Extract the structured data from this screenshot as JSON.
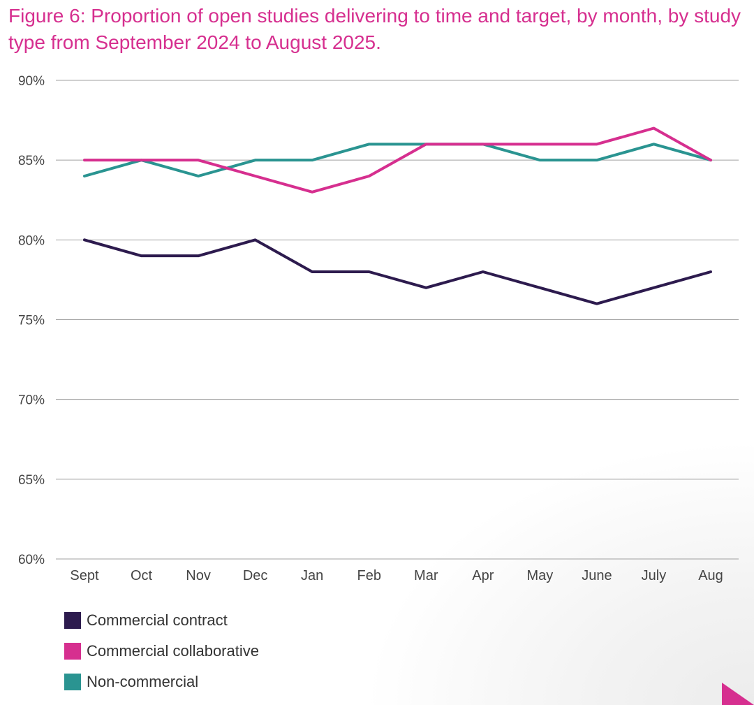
{
  "colors": {
    "title": "#d62f8f",
    "grid": "#a0a0a0",
    "axis_text": "#444444",
    "accent": "#d62f8f"
  },
  "chart_data": {
    "type": "line",
    "title": "Figure 6: Proportion of open studies delivering to time and target, by month, by study type from September 2024 to August 2025.",
    "categories": [
      "Sept",
      "Oct",
      "Nov",
      "Dec",
      "Jan",
      "Feb",
      "Mar",
      "Apr",
      "May",
      "June",
      "July",
      "Aug"
    ],
    "ylim": [
      60,
      90
    ],
    "yticks": [
      {
        "value": 90,
        "label": "90%"
      },
      {
        "value": 85,
        "label": "85%"
      },
      {
        "value": 80,
        "label": "80%"
      },
      {
        "value": 75,
        "label": "75%"
      },
      {
        "value": 70,
        "label": "70%"
      },
      {
        "value": 65,
        "label": "65%"
      },
      {
        "value": 60,
        "label": "60%"
      }
    ],
    "xlabel": "",
    "ylabel": "",
    "grid": true,
    "legend_position": "bottom-left",
    "series": [
      {
        "name": "Commercial contract",
        "key": "commercial-contract",
        "color": "#2d1b4e",
        "values": [
          80,
          79,
          79,
          80,
          78,
          78,
          77,
          78,
          77,
          76,
          77,
          78
        ]
      },
      {
        "name": "Non-commercial",
        "key": "non-commercial",
        "color": "#2a9491",
        "values": [
          84,
          85,
          84,
          85,
          85,
          86,
          86,
          86,
          85,
          85,
          86,
          85
        ]
      },
      {
        "name": "Commercial collaborative",
        "key": "commercial-collaborative",
        "color": "#d62f8f",
        "values": [
          85,
          85,
          85,
          84,
          83,
          84,
          86,
          86,
          86,
          86,
          87,
          85
        ]
      }
    ],
    "legend": [
      {
        "name": "Commercial contract",
        "color": "#2d1b4e"
      },
      {
        "name": "Commercial collaborative",
        "color": "#d62f8f"
      },
      {
        "name": "Non-commercial",
        "color": "#2a9491"
      }
    ]
  }
}
